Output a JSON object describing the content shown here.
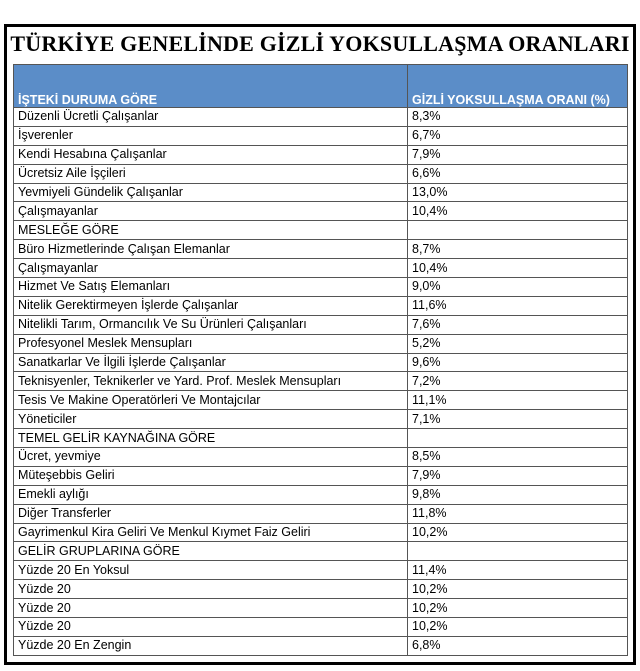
{
  "title": "TÜRKİYE GENELİNDE GİZLİ YOKSULLAŞMA ORANLARI",
  "table": {
    "header": [
      "İŞTEKİ DURUMA GÖRE",
      "GİZLİ YOKSULLAŞMA ORANI (%)"
    ],
    "rows": [
      [
        "Düzenli Ücretli Çalışanlar",
        "8,3%"
      ],
      [
        "İşverenler",
        "6,7%"
      ],
      [
        "Kendi Hesabına Çalışanlar",
        "7,9%"
      ],
      [
        "Ücretsiz Aile İşçileri",
        "6,6%"
      ],
      [
        "Yevmiyeli Gündelik Çalışanlar",
        "13,0%"
      ],
      [
        "Çalışmayanlar",
        "10,4%"
      ],
      [
        "MESLEĞE GÖRE"
      ],
      [
        "Büro Hizmetlerinde Çalışan Elemanlar",
        "8,7%"
      ],
      [
        "Çalışmayanlar",
        "10,4%"
      ],
      [
        "Hizmet Ve Satış Elemanları",
        "9,0%"
      ],
      [
        "Nitelik Gerektirmeyen İşlerde Çalışanlar",
        "11,6%"
      ],
      [
        "Nitelikli Tarım, Ormancılık Ve Su Ürünleri Çalışanları",
        "7,6%"
      ],
      [
        "Profesyonel Meslek Mensupları",
        "5,2%"
      ],
      [
        "Sanatkarlar Ve İlgili İşlerde Çalışanlar",
        "9,6%"
      ],
      [
        "Teknisyenler, Teknikerler ve Yard. Prof. Meslek Mensupları",
        "7,2%"
      ],
      [
        "Tesis Ve Makine Operatörleri Ve Montajcılar",
        "11,1%"
      ],
      [
        "Yöneticiler",
        "7,1%"
      ],
      [
        "TEMEL GELİR KAYNAĞINA GÖRE"
      ],
      [
        "Ücret, yevmiye",
        "8,5%"
      ],
      [
        "Müteşebbis Geliri",
        "7,9%"
      ],
      [
        "Emekli aylığı",
        "9,8%"
      ],
      [
        "Diğer Transferler",
        "11,8%"
      ],
      [
        "Gayrimenkul Kira Geliri Ve Menkul Kıymet Faiz Geliri",
        "10,2%"
      ],
      [
        "GELİR GRUPLARINA GÖRE"
      ],
      [
        "Yüzde 20 En Yoksul",
        "11,4%"
      ],
      [
        "Yüzde 20",
        "10,2%"
      ],
      [
        "Yüzde 20",
        "10,2%"
      ],
      [
        "Yüzde 20",
        "10,2%"
      ],
      [
        "Yüzde 20 En Zengin",
        "6,8%"
      ]
    ]
  }
}
